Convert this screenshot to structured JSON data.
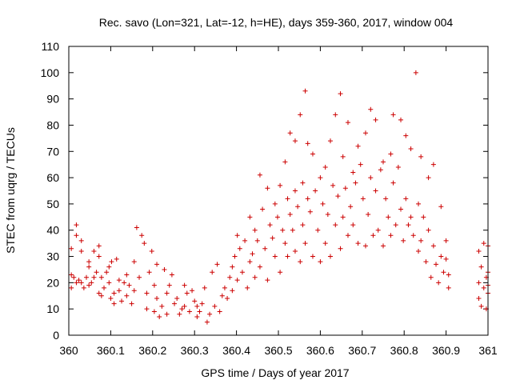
{
  "chart_data": {
    "type": "scatter",
    "title": "Rec. savo (Lon=321, Lat=-12, h=HE), days 359-360, 2017, window 004",
    "xlabel": "GPS time / Days of year 2017",
    "ylabel": "STEC from uqrg / TECUs",
    "xlim": [
      360,
      361
    ],
    "ylim": [
      0,
      110
    ],
    "x_ticks": [
      360,
      360.1,
      360.2,
      360.3,
      360.4,
      360.5,
      360.6,
      360.7,
      360.8,
      360.9,
      361
    ],
    "x_tick_labels": [
      "360",
      "360.1",
      "360.2",
      "360.3",
      "360.4",
      "360.5",
      "360.6",
      "360.7",
      "360.8",
      "360.9",
      "361"
    ],
    "y_ticks": [
      0,
      10,
      20,
      30,
      40,
      50,
      60,
      70,
      80,
      90,
      100,
      110
    ],
    "y_tick_labels": [
      "0",
      "10",
      "20",
      "30",
      "40",
      "50",
      "60",
      "70",
      "80",
      "90",
      "100",
      "110"
    ],
    "grid": false,
    "marker": "+",
    "color": "#cc0000",
    "points": [
      [
        360.006,
        33
      ],
      [
        360.006,
        23
      ],
      [
        360.006,
        18
      ],
      [
        360.012,
        22
      ],
      [
        360.018,
        42
      ],
      [
        360.018,
        38
      ],
      [
        360.018,
        20
      ],
      [
        360.024,
        21
      ],
      [
        360.03,
        36
      ],
      [
        360.03,
        32
      ],
      [
        360.03,
        20
      ],
      [
        360.036,
        18
      ],
      [
        360.042,
        22
      ],
      [
        360.048,
        28
      ],
      [
        360.048,
        26
      ],
      [
        360.048,
        19
      ],
      [
        360.054,
        20
      ],
      [
        360.06,
        32
      ],
      [
        360.06,
        22
      ],
      [
        360.066,
        24
      ],
      [
        360.072,
        34
      ],
      [
        360.072,
        30
      ],
      [
        360.072,
        16
      ],
      [
        360.078,
        15
      ],
      [
        360.078,
        22
      ],
      [
        360.084,
        18
      ],
      [
        360.09,
        24
      ],
      [
        360.096,
        26
      ],
      [
        360.096,
        20
      ],
      [
        360.1,
        14
      ],
      [
        360.102,
        28
      ],
      [
        360.108,
        12
      ],
      [
        360.108,
        16
      ],
      [
        360.114,
        29
      ],
      [
        360.12,
        21
      ],
      [
        360.12,
        17
      ],
      [
        360.126,
        13
      ],
      [
        360.132,
        20
      ],
      [
        360.138,
        23
      ],
      [
        360.138,
        15
      ],
      [
        360.144,
        19
      ],
      [
        360.15,
        12
      ],
      [
        360.156,
        17
      ],
      [
        360.156,
        28
      ],
      [
        360.162,
        41
      ],
      [
        360.168,
        22
      ],
      [
        360.174,
        38
      ],
      [
        360.18,
        35
      ],
      [
        360.186,
        16
      ],
      [
        360.186,
        10
      ],
      [
        360.192,
        24
      ],
      [
        360.198,
        32
      ],
      [
        360.204,
        9
      ],
      [
        360.204,
        19
      ],
      [
        360.21,
        27
      ],
      [
        360.21,
        14
      ],
      [
        360.216,
        7
      ],
      [
        360.222,
        11
      ],
      [
        360.228,
        25
      ],
      [
        360.234,
        16
      ],
      [
        360.234,
        8
      ],
      [
        360.24,
        19
      ],
      [
        360.246,
        23
      ],
      [
        360.252,
        12
      ],
      [
        360.258,
        14
      ],
      [
        360.264,
        8
      ],
      [
        360.27,
        10
      ],
      [
        360.276,
        19
      ],
      [
        360.276,
        11
      ],
      [
        360.282,
        16
      ],
      [
        360.288,
        9
      ],
      [
        360.294,
        17
      ],
      [
        360.3,
        13
      ],
      [
        360.306,
        7
      ],
      [
        360.306,
        11
      ],
      [
        360.312,
        9
      ],
      [
        360.318,
        12
      ],
      [
        360.324,
        18
      ],
      [
        360.33,
        5
      ],
      [
        360.336,
        8
      ],
      [
        360.342,
        24
      ],
      [
        360.348,
        11
      ],
      [
        360.354,
        27
      ],
      [
        360.36,
        9
      ],
      [
        360.366,
        15
      ],
      [
        360.372,
        18
      ],
      [
        360.378,
        14
      ],
      [
        360.384,
        22
      ],
      [
        360.39,
        26
      ],
      [
        360.39,
        17
      ],
      [
        360.396,
        30
      ],
      [
        360.402,
        38
      ],
      [
        360.402,
        21
      ],
      [
        360.408,
        33
      ],
      [
        360.414,
        24
      ],
      [
        360.42,
        36
      ],
      [
        360.426,
        18
      ],
      [
        360.432,
        45
      ],
      [
        360.432,
        28
      ],
      [
        360.438,
        31
      ],
      [
        360.444,
        40
      ],
      [
        360.444,
        22
      ],
      [
        360.45,
        36
      ],
      [
        360.456,
        61
      ],
      [
        360.456,
        26
      ],
      [
        360.462,
        48
      ],
      [
        360.468,
        33
      ],
      [
        360.474,
        56
      ],
      [
        360.474,
        21
      ],
      [
        360.48,
        42
      ],
      [
        360.486,
        37
      ],
      [
        360.492,
        50
      ],
      [
        360.492,
        30
      ],
      [
        360.498,
        45
      ],
      [
        360.504,
        57
      ],
      [
        360.504,
        24
      ],
      [
        360.51,
        40
      ],
      [
        360.516,
        66
      ],
      [
        360.516,
        35
      ],
      [
        360.522,
        52
      ],
      [
        360.522,
        30
      ],
      [
        360.528,
        77
      ],
      [
        360.528,
        46
      ],
      [
        360.534,
        40
      ],
      [
        360.54,
        74
      ],
      [
        360.54,
        55
      ],
      [
        360.54,
        32
      ],
      [
        360.546,
        49
      ],
      [
        360.552,
        84
      ],
      [
        360.552,
        28
      ],
      [
        360.558,
        58
      ],
      [
        360.558,
        42
      ],
      [
        360.564,
        93
      ],
      [
        360.564,
        35
      ],
      [
        360.57,
        73
      ],
      [
        360.57,
        52
      ],
      [
        360.576,
        47
      ],
      [
        360.582,
        69
      ],
      [
        360.582,
        30
      ],
      [
        360.588,
        55
      ],
      [
        360.594,
        40
      ],
      [
        360.6,
        60
      ],
      [
        360.6,
        28
      ],
      [
        360.606,
        50
      ],
      [
        360.612,
        64
      ],
      [
        360.612,
        35
      ],
      [
        360.618,
        46
      ],
      [
        360.624,
        74
      ],
      [
        360.624,
        30
      ],
      [
        360.63,
        57
      ],
      [
        360.636,
        84
      ],
      [
        360.636,
        42
      ],
      [
        360.642,
        53
      ],
      [
        360.648,
        92
      ],
      [
        360.648,
        33
      ],
      [
        360.654,
        68
      ],
      [
        360.654,
        45
      ],
      [
        360.66,
        56
      ],
      [
        360.666,
        81
      ],
      [
        360.666,
        38
      ],
      [
        360.672,
        49
      ],
      [
        360.678,
        62
      ],
      [
        360.678,
        42
      ],
      [
        360.684,
        58
      ],
      [
        360.69,
        72
      ],
      [
        360.69,
        35
      ],
      [
        360.696,
        65
      ],
      [
        360.702,
        52
      ],
      [
        360.708,
        77
      ],
      [
        360.708,
        34
      ],
      [
        360.714,
        46
      ],
      [
        360.72,
        86
      ],
      [
        360.72,
        60
      ],
      [
        360.726,
        38
      ],
      [
        360.732,
        82
      ],
      [
        360.732,
        55
      ],
      [
        360.738,
        40
      ],
      [
        360.744,
        63
      ],
      [
        360.75,
        66
      ],
      [
        360.75,
        34
      ],
      [
        360.756,
        52
      ],
      [
        360.762,
        45
      ],
      [
        360.768,
        69
      ],
      [
        360.768,
        38
      ],
      [
        360.774,
        84
      ],
      [
        360.774,
        58
      ],
      [
        360.78,
        42
      ],
      [
        360.786,
        64
      ],
      [
        360.792,
        82
      ],
      [
        360.792,
        48
      ],
      [
        360.798,
        36
      ],
      [
        360.804,
        76
      ],
      [
        360.804,
        52
      ],
      [
        360.81,
        42
      ],
      [
        360.816,
        71
      ],
      [
        360.816,
        45
      ],
      [
        360.822,
        38
      ],
      [
        360.828,
        100
      ],
      [
        360.834,
        50
      ],
      [
        360.834,
        32
      ],
      [
        360.84,
        68
      ],
      [
        360.84,
        36
      ],
      [
        360.846,
        45
      ],
      [
        360.852,
        28
      ],
      [
        360.858,
        60
      ],
      [
        360.858,
        40
      ],
      [
        360.864,
        22
      ],
      [
        360.87,
        65
      ],
      [
        360.87,
        34
      ],
      [
        360.876,
        27
      ],
      [
        360.882,
        20
      ],
      [
        360.888,
        49
      ],
      [
        360.888,
        30
      ],
      [
        360.894,
        24
      ],
      [
        360.9,
        36
      ],
      [
        360.9,
        29
      ],
      [
        360.906,
        18
      ],
      [
        360.906,
        23
      ],
      [
        360.978,
        32
      ],
      [
        360.978,
        14
      ],
      [
        360.978,
        20
      ],
      [
        360.984,
        26
      ],
      [
        360.984,
        11
      ],
      [
        360.99,
        35
      ],
      [
        360.99,
        18
      ],
      [
        360.996,
        22
      ],
      [
        360.996,
        10
      ],
      [
        361.0,
        34
      ],
      [
        361.0,
        24
      ],
      [
        361.0,
        16
      ],
      [
        361.0,
        19
      ]
    ]
  }
}
